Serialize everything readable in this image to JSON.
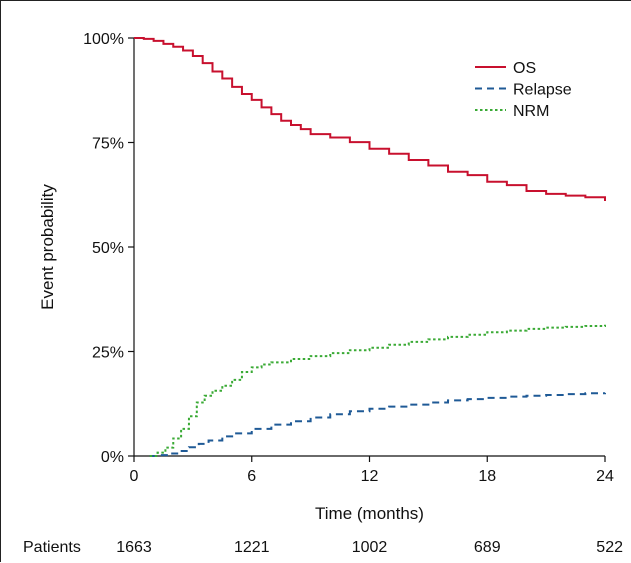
{
  "chart_data": {
    "type": "line",
    "xlabel": "Time (months)",
    "ylabel": "Event probability",
    "xlim": [
      0,
      24
    ],
    "ylim": [
      0,
      100
    ],
    "x_ticks": [
      0,
      6,
      12,
      18,
      24
    ],
    "x_tick_labels": [
      "0",
      "6",
      "12",
      "18",
      "24"
    ],
    "y_ticks": [
      0,
      25,
      50,
      75,
      100
    ],
    "y_tick_labels": [
      "0%",
      "25%",
      "50%",
      "75%",
      "100%"
    ],
    "grid": false,
    "legend_position": "top-right",
    "series": [
      {
        "name": "OS",
        "color": "#c8102e",
        "style": "solid",
        "x": [
          0,
          0.5,
          1,
          1.5,
          2,
          2.5,
          3,
          3.5,
          4,
          4.5,
          5,
          5.5,
          6,
          6.5,
          7,
          7.5,
          8,
          8.5,
          9,
          10,
          11,
          12,
          13,
          14,
          15,
          16,
          17,
          18,
          19,
          20,
          21,
          22,
          23,
          24
        ],
        "y": [
          100,
          99.8,
          99.3,
          98.6,
          97.9,
          97,
          95.7,
          94,
          92,
          90.3,
          88.3,
          86.6,
          85.2,
          83.4,
          81.8,
          80.2,
          79.2,
          78.2,
          77,
          76.2,
          75.1,
          73.5,
          72.3,
          70.8,
          69.5,
          68,
          67.2,
          65.6,
          64.8,
          63.4,
          62.7,
          62.3,
          61.9,
          61
        ]
      },
      {
        "name": "Relapse",
        "color": "#1f5a96",
        "style": "dashed",
        "x": [
          0.8,
          1.3,
          1.8,
          2.3,
          2.8,
          3.3,
          3.8,
          4.5,
          5,
          6,
          7,
          8,
          9,
          10,
          11,
          12,
          13,
          14,
          15,
          16,
          17,
          18,
          19,
          20,
          21,
          22,
          23,
          24
        ],
        "y": [
          0,
          0.2,
          0.6,
          1.2,
          2.1,
          2.9,
          3.7,
          4.7,
          5.4,
          6.5,
          7.5,
          8.3,
          9.2,
          10,
          10.7,
          11.3,
          11.8,
          12.3,
          12.8,
          13.3,
          13.6,
          13.9,
          14.2,
          14.4,
          14.6,
          14.8,
          15,
          15.1
        ]
      },
      {
        "name": "NRM",
        "color": "#3aaa35",
        "style": "dotted",
        "x": [
          0.8,
          1.2,
          1.6,
          2,
          2.4,
          2.8,
          3.2,
          3.6,
          4,
          4.5,
          5,
          5.5,
          6,
          6.5,
          7,
          8,
          9,
          10,
          11,
          12,
          13,
          14,
          15,
          16,
          17,
          18,
          19,
          20,
          21,
          22,
          23,
          24
        ],
        "y": [
          0,
          0.8,
          2,
          4.2,
          6.5,
          9.5,
          12.8,
          14.4,
          15.6,
          16.8,
          18.2,
          20.1,
          21.2,
          21.9,
          22.4,
          23.2,
          23.9,
          24.6,
          25.3,
          25.9,
          26.6,
          27.3,
          27.9,
          28.5,
          29,
          29.6,
          30,
          30.4,
          30.7,
          30.9,
          31.1,
          31.4
        ]
      }
    ],
    "risk_table": {
      "label": "Patients",
      "x": [
        0,
        6,
        12,
        18,
        24
      ],
      "values": [
        "1663",
        "1221",
        "1002",
        "689",
        "522"
      ]
    }
  }
}
